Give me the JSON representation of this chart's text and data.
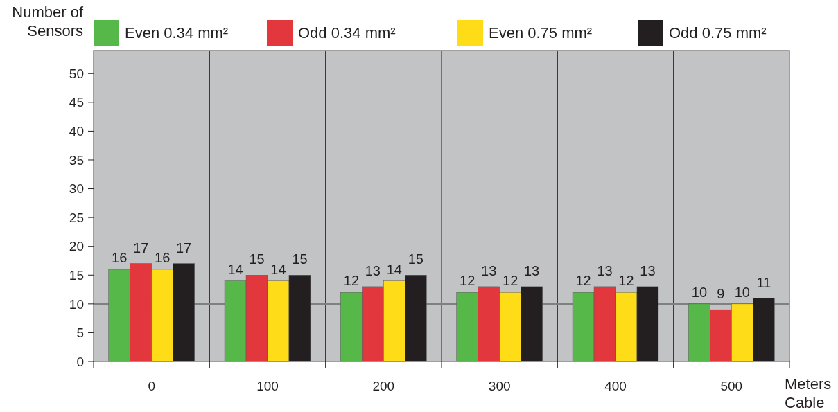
{
  "chart_data": {
    "type": "bar",
    "ylabel": "Number of Sensors",
    "xlabel": "Meters Cable",
    "categories": [
      "0",
      "100",
      "200",
      "300",
      "400",
      "500"
    ],
    "series": [
      {
        "name": "Even 0.34 mm²",
        "color": "#55b848",
        "values": [
          16,
          14,
          12,
          12,
          12,
          10
        ]
      },
      {
        "name": "Odd 0.34 mm²",
        "color": "#e2383d",
        "values": [
          17,
          15,
          13,
          13,
          13,
          9
        ]
      },
      {
        "name": "Even 0.75 mm²",
        "color": "#fedd18",
        "values": [
          16,
          14,
          14,
          12,
          12,
          10
        ]
      },
      {
        "name": "Odd 0.75 mm²",
        "color": "#231f20",
        "values": [
          17,
          15,
          15,
          13,
          13,
          11
        ]
      }
    ],
    "ylim": [
      0,
      54
    ],
    "yticks": [
      0,
      5,
      10,
      15,
      20,
      25,
      30,
      35,
      40,
      45,
      50
    ],
    "grid": "x",
    "legend": "top",
    "data_labels": true,
    "ref_lines": [
      {
        "axis": "y",
        "value": 10,
        "color": "#808080"
      }
    ]
  }
}
